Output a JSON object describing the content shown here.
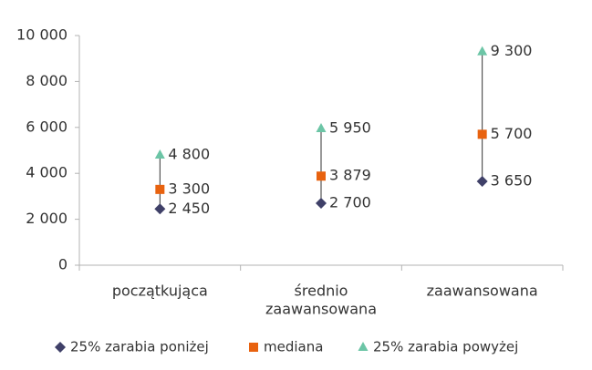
{
  "chart_data": {
    "type": "scatter",
    "categories": [
      [
        "początkująca"
      ],
      [
        "średnio",
        "zaawansowana"
      ],
      [
        "zaawansowana"
      ]
    ],
    "series": [
      {
        "name": "25% zarabia poniżej",
        "marker": "diamond",
        "color": "#3f4068",
        "values": [
          2450,
          2700,
          3650
        ],
        "labels": [
          "2 450",
          "2 700",
          "3 650"
        ]
      },
      {
        "name": "mediana",
        "marker": "square",
        "color": "#e8620f",
        "values": [
          3300,
          3879,
          5700
        ],
        "labels": [
          "3 300",
          "3 879",
          "5 700"
        ]
      },
      {
        "name": "25% zarabia powyżej",
        "marker": "triangle",
        "color": "#6cc5a6",
        "values": [
          4800,
          5950,
          9300
        ],
        "labels": [
          "4 800",
          "5 950",
          "9 300"
        ]
      }
    ],
    "ylim": [
      0,
      10000
    ],
    "yticks": [
      0,
      2000,
      4000,
      6000,
      8000,
      10000
    ],
    "ytick_labels": [
      "0",
      "2 000",
      "4 000",
      "6 000",
      "8 000",
      "10 000"
    ],
    "grid": false,
    "legend_position": "bottom"
  }
}
